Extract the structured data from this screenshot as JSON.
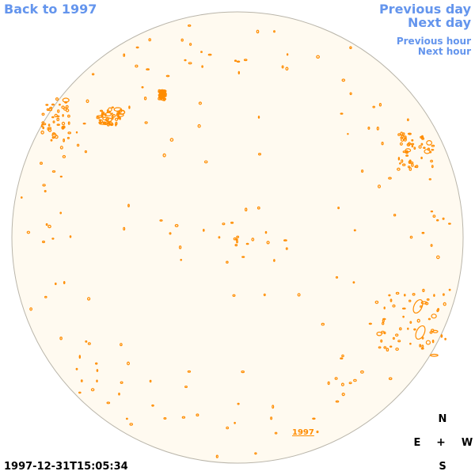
{
  "nav": {
    "back_label": "Back to 1997",
    "previous_day_label": "Previous day",
    "next_day_label": "Next day",
    "previous_hour_label": "Previous hour",
    "next_hour_label": "Next hour"
  },
  "timestamp": "1997-12-31T15:05:34",
  "compass": {
    "north": "N",
    "east": "E",
    "center": "+",
    "west": "W",
    "south": "S"
  },
  "disk_year_label": "1997",
  "colors": {
    "link": "#6495ed",
    "disk_fill": "#fffaf0",
    "disk_border": "#b9b5aa",
    "contour": "#ff8c00"
  }
}
